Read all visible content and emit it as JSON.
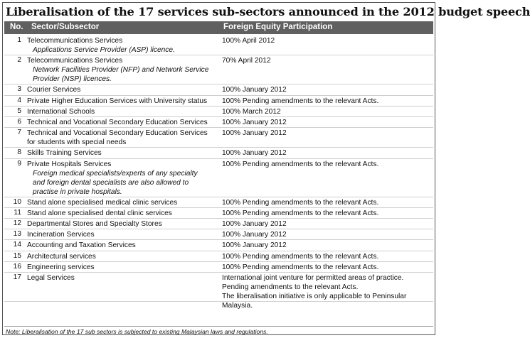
{
  "title": "Liberalisation of the 17 services sub-sectors announced in the 2012 budget speech",
  "columns": {
    "no": "No.",
    "sector": "Sector/Subsector",
    "fep": "Foreign Equity Participation"
  },
  "rows": [
    {
      "no": "1",
      "sector": "Telecommunications Services",
      "sub": [
        "Applications Service Provider (ASP) licence."
      ],
      "fep": [
        "100% April 2012"
      ]
    },
    {
      "no": "2",
      "sector": "Telecommunications Services",
      "sub": [
        "Network Facilities Provider (NFP) and Network Service",
        "Provider (NSP) licences."
      ],
      "fep": [
        "70% April 2012"
      ]
    },
    {
      "no": "3",
      "sector": "Courier Services",
      "sub": [],
      "fep": [
        "100% January 2012"
      ]
    },
    {
      "no": "4",
      "sector": "Private Higher Education Services with University status",
      "sub": [],
      "fep": [
        "100% Pending amendments to the relevant Acts."
      ]
    },
    {
      "no": "5",
      "sector": "International Schools",
      "sub": [],
      "fep": [
        "100% March 2012"
      ]
    },
    {
      "no": "6",
      "sector": "Technical and Vocational Secondary Education Services",
      "sub": [],
      "fep": [
        "100% January 2012"
      ]
    },
    {
      "no": "7",
      "sector": "Technical and Vocational Secondary Education Services",
      "sector2": "for students with special needs",
      "sub": [],
      "fep": [
        "100% January 2012"
      ]
    },
    {
      "no": "8",
      "sector": "Skills Training Services",
      "sub": [],
      "fep": [
        "100% January 2012"
      ]
    },
    {
      "no": "9",
      "sector": "Private Hospitals Services",
      "sub": [
        "Foreign medical specialists/experts of any specialty",
        "and foreign dental specialists are also allowed to",
        "practise in private hospitals."
      ],
      "fep": [
        "100% Pending amendments to the relevant Acts."
      ]
    },
    {
      "no": "10",
      "sector": "Stand alone specialised medical clinic services",
      "sub": [],
      "fep": [
        "100% Pending amendments to the relevant Acts."
      ]
    },
    {
      "no": "11",
      "sector": "Stand alone specialised dental clinic services",
      "sub": [],
      "fep": [
        "100% Pending amendments to the relevant Acts."
      ]
    },
    {
      "no": "12",
      "sector": "Departmental Stores and Specialty Stores",
      "sub": [],
      "fep": [
        "100% January 2012"
      ]
    },
    {
      "no": "13",
      "sector": "Incineration Services",
      "sub": [],
      "fep": [
        "100% January 2012"
      ]
    },
    {
      "no": "14",
      "sector": "Accounting and Taxation Services",
      "sub": [],
      "fep": [
        "100% January 2012"
      ]
    },
    {
      "no": "15",
      "sector": "Architectural services",
      "sub": [],
      "fep": [
        "100% Pending amendments to the relevant Acts."
      ]
    },
    {
      "no": "16",
      "sector": "Engineering services",
      "sub": [],
      "fep": [
        "100% Pending amendments to the relevant Acts."
      ]
    },
    {
      "no": "17",
      "sector": "Legal Services",
      "sub": [],
      "fep": [
        "International joint venture for permitted areas of practice.",
        "Pending amendments to the relevant Acts.",
        "The liberalisation initiative is only applicable to Peninsular Malaysia."
      ]
    }
  ],
  "note": "Note: Liberalisation of the 17 sub sectors is subjected to existing Malaysian laws and regulations."
}
